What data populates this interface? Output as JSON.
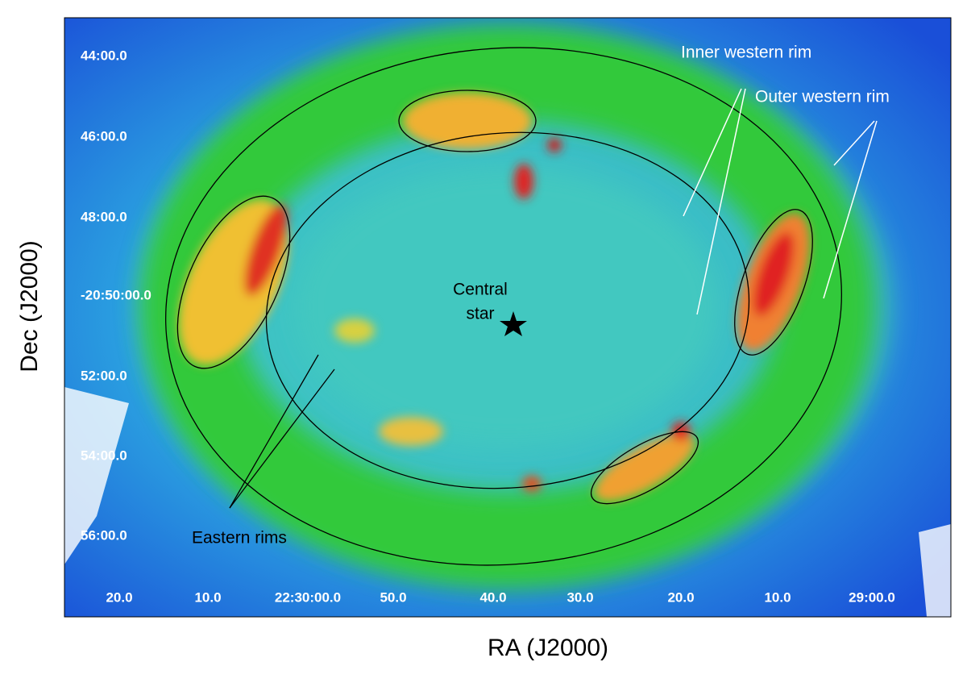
{
  "image": {
    "x_axis_label": "RA (J2000)",
    "y_axis_label": "Dec (J2000)",
    "x_tick_labels": [
      "20.0",
      "10.0",
      "22:30:00.0",
      "50.0",
      "40.0",
      "30.0",
      "20.0",
      "10.0",
      "29:00.0"
    ],
    "y_tick_labels": [
      "44:00.0",
      "46:00.0",
      "48:00.0",
      "-20:50:00.0",
      "52:00.0",
      "54:00.0",
      "56:00.0"
    ],
    "annotations": {
      "inner_western_rim": "Inner western rim",
      "outer_western_rim": "Outer western rim",
      "central_star": [
        "Central",
        "star"
      ],
      "eastern_rims": "Eastern rims"
    }
  }
}
